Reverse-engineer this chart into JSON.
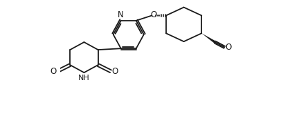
{
  "bg_color": "#ffffff",
  "line_color": "#1a1a1a",
  "line_width": 1.3,
  "font_size": 8.5,
  "xlim": [
    0,
    14
  ],
  "ylim": [
    0,
    9
  ]
}
